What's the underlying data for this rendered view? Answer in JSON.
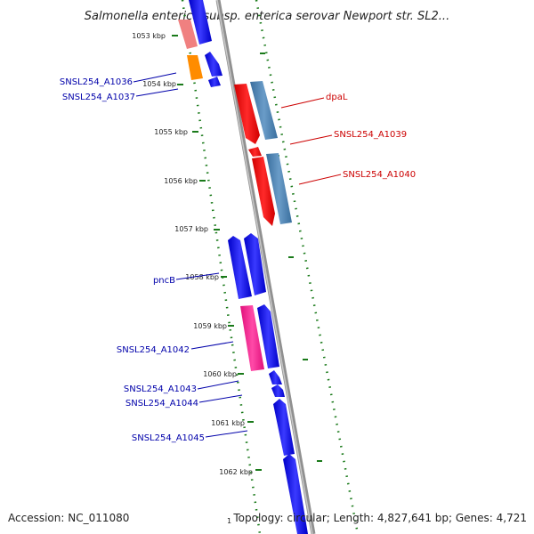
{
  "title": "Salmonella enterica subsp. enterica serovar Newport str. SL2...",
  "accession": "Accession: NC_011080",
  "summary": "Topology: circular; Length: 4,827,641 bp; Genes: 4,721",
  "bottom_tick": "1",
  "colors": {
    "backbone": "#888888",
    "tick_dots": "#1a7a1a",
    "forward": "#0000ff",
    "reverse": "#ff0000",
    "reverse_paired": "#4682b4",
    "orange_gene": "#ff8c00",
    "pink_gene": "#ff1493",
    "faded_gene": "#f08080",
    "label_blue": "#0000aa",
    "label_red": "#cc0000"
  },
  "ticks": [
    "1053 kbp",
    "1054 kbp",
    "1055 kbp",
    "1056 kbp",
    "1057 kbp",
    "1058 kbp",
    "1059 kbp",
    "1060 kbp",
    "1061 kbp",
    "1062 kbp"
  ],
  "left_labels": [
    "SNSL254_A1036",
    "SNSL254_A1037",
    "pncB",
    "SNSL254_A1042",
    "SNSL254_A1043",
    "SNSL254_A1044",
    "SNSL254_A1045"
  ],
  "right_labels": [
    "dpaL",
    "SNSL254_A1039",
    "SNSL254_A1040"
  ]
}
